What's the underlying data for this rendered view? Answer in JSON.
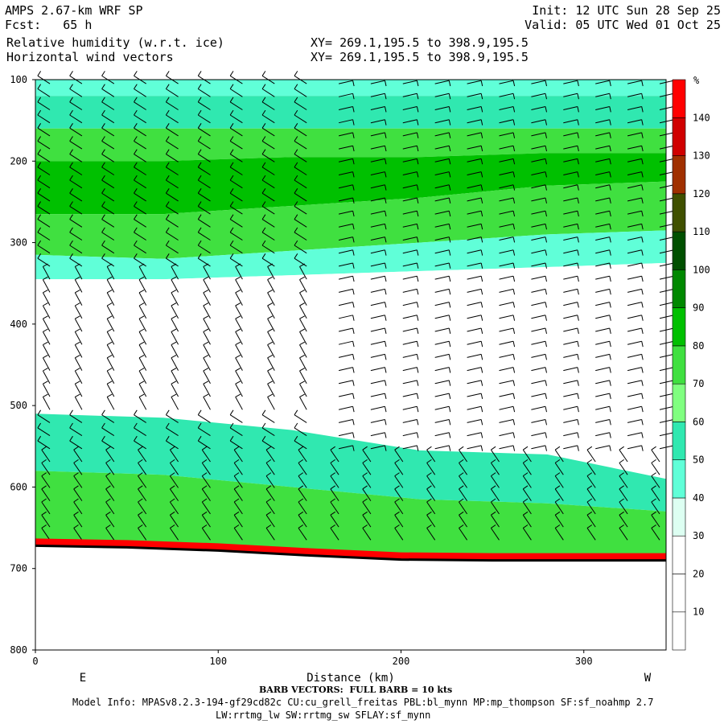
{
  "header": {
    "model": "AMPS 2.67-km WRF SP",
    "fcst": "Fcst:   65 h",
    "field1": "Relative humidity (w.r.t. ice)",
    "field2": "Horizontal wind vectors",
    "init": "Init: 12 UTC Sun 28 Sep 25",
    "valid": "Valid: 05 UTC Wed 01 Oct 25",
    "xy1": "XY= 269.1,195.5 to 398.9,195.5",
    "xy2": "XY= 269.1,195.5 to 398.9,195.5"
  },
  "footer": {
    "barb_note": "BARB VECTORS:  FULL BARB = 10 kts",
    "model_info": "Model Info: MPASv8.2.3-194-gf29cd82c CU:cu_grell_freitas PBL:bl_mynn MP:mp_thompson SF:sf_noahmp 2.7",
    "model_info2": "LW:rrtmg_lw SW:rrtmg_sw SFLAY:sf_mynn"
  },
  "colors": {
    "rh_levels": [
      "#ffffff",
      "#ffffff",
      "#ffffff",
      "#ddfff2",
      "#60ffd8",
      "#30e8b0",
      "#80ff80",
      "#40e040",
      "#00c000",
      "#008800",
      "#005000",
      "#405000",
      "#a03000",
      "#d00000",
      "#ff0000"
    ],
    "terrain_red": "#ff0000",
    "terrain_dark": "#000000"
  },
  "chart_data": {
    "type": "heatmap",
    "title": "Relative humidity (w.r.t. ice)",
    "xlabel": "Distance (km)",
    "ylabel": "",
    "x_ticks": [
      0,
      100,
      200,
      300
    ],
    "y_ticks": [
      100,
      200,
      300,
      400,
      500,
      600,
      700,
      800
    ],
    "xlim": [
      0,
      345
    ],
    "ylim": [
      800,
      100
    ],
    "x_end_labels": {
      "left": "E",
      "right": "W"
    },
    "colorbar": {
      "unit": "%",
      "levels": [
        10,
        20,
        30,
        40,
        50,
        60,
        70,
        80,
        90,
        100,
        110,
        120,
        130,
        140
      ],
      "colors": [
        "#ffffff",
        "#ffffff",
        "#ffffff",
        "#ddfff2",
        "#60ffd8",
        "#30e8b0",
        "#80ff80",
        "#40e040",
        "#00c000",
        "#008800",
        "#005000",
        "#405000",
        "#a03000",
        "#d00000",
        "#ff0000"
      ]
    },
    "rh_bands": [
      {
        "top": [
          100,
          100,
          100,
          100,
          100,
          100
        ],
        "bottom": [
          120,
          120,
          120,
          120,
          120,
          120
        ],
        "rh": 45
      },
      {
        "top": [
          120,
          120,
          120,
          120,
          120,
          120
        ],
        "bottom": [
          160,
          160,
          160,
          160,
          160,
          160
        ],
        "rh": 55
      },
      {
        "top": [
          160,
          160,
          160,
          160,
          160,
          160
        ],
        "bottom": [
          200,
          200,
          195,
          195,
          190,
          190
        ],
        "rh": 75
      },
      {
        "top": [
          200,
          200,
          195,
          195,
          190,
          190
        ],
        "bottom": [
          265,
          265,
          255,
          245,
          230,
          225
        ],
        "rh": 85
      },
      {
        "top": [
          265,
          265,
          255,
          245,
          230,
          225
        ],
        "bottom": [
          315,
          320,
          310,
          300,
          290,
          285
        ],
        "rh": 75
      },
      {
        "top": [
          315,
          320,
          310,
          300,
          290,
          285
        ],
        "bottom": [
          345,
          345,
          340,
          335,
          330,
          325
        ],
        "rh": 45
      },
      {
        "top": [
          345,
          345,
          340,
          335,
          330,
          325
        ],
        "bottom": [
          510,
          515,
          530,
          555,
          560,
          590
        ],
        "rh": 25
      },
      {
        "top": [
          510,
          515,
          530,
          555,
          560,
          590
        ],
        "bottom": [
          580,
          585,
          600,
          615,
          620,
          630
        ],
        "rh": 55
      },
      {
        "top": [
          580,
          585,
          600,
          615,
          620,
          630
        ],
        "bottom": [
          672,
          678,
          685,
          690,
          690,
          692
        ],
        "rh": 75
      }
    ],
    "band_x": [
      0,
      70,
      140,
      210,
      280,
      345
    ],
    "terrain": {
      "x": [
        0,
        50,
        100,
        150,
        200,
        250,
        300,
        345
      ],
      "p": [
        672,
        674,
        678,
        684,
        689,
        690,
        690,
        690
      ]
    }
  }
}
